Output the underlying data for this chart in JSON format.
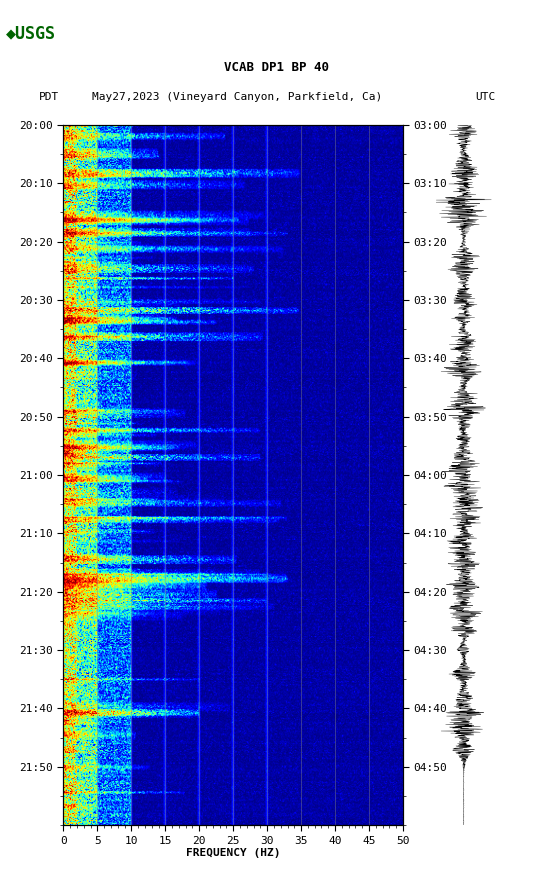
{
  "title_line1": "VCAB DP1 BP 40",
  "title_line2_left": "PDT",
  "title_line2_mid": "May27,2023 (Vineyard Canyon, Parkfield, Ca)",
  "title_line2_right": "UTC",
  "xlabel": "FREQUENCY (HZ)",
  "freq_min": 0,
  "freq_max": 50,
  "freq_ticks": [
    0,
    5,
    10,
    15,
    20,
    25,
    30,
    35,
    40,
    45,
    50
  ],
  "time_labels_left": [
    "20:00",
    "20:10",
    "20:20",
    "20:30",
    "20:40",
    "20:50",
    "21:00",
    "21:10",
    "21:20",
    "21:30",
    "21:40",
    "21:50"
  ],
  "time_labels_right": [
    "03:00",
    "03:10",
    "03:20",
    "03:30",
    "03:40",
    "03:50",
    "04:00",
    "04:10",
    "04:20",
    "04:30",
    "04:40",
    "04:50"
  ],
  "background_color": "#ffffff",
  "spectrogram_cmap": "jet",
  "grid_color": "#888888",
  "grid_alpha": 0.6,
  "fig_width": 5.52,
  "fig_height": 8.92,
  "dpi": 100,
  "usgs_logo_color": "#006400",
  "tick_label_fontsize": 8,
  "title_fontsize": 9,
  "axis_label_fontsize": 8,
  "vertical_grid_freqs": [
    5,
    10,
    15,
    20,
    25,
    30,
    35,
    40,
    45
  ],
  "n_time": 720,
  "n_freq": 500
}
